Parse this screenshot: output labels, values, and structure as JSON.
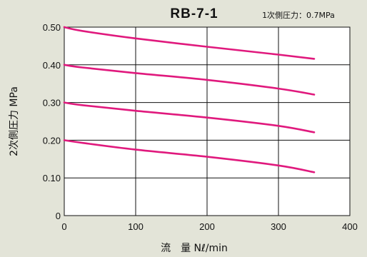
{
  "chart_data": {
    "type": "line",
    "title": "RB-7-1",
    "subtitle": "1次側圧力：0.7MPa",
    "xlabel": "流　量 Nℓ/min",
    "ylabel": "2次側圧力 MPa",
    "xlim": [
      0,
      400
    ],
    "ylim": [
      0,
      0.5
    ],
    "xticks": [
      "0",
      "100",
      "200",
      "300",
      "400"
    ],
    "yticks": [
      "0",
      "0.10",
      "0.20",
      "0.30",
      "0.40",
      "0.50"
    ],
    "grid": true,
    "colors": {
      "background": "#e3e4d8",
      "plot_background": "#ffffff",
      "line": "#e0197d",
      "grid": "#111111"
    },
    "series": [
      {
        "x": [
          0,
          25,
          100,
          200,
          300,
          350
        ],
        "y": [
          0.5,
          0.49,
          0.47,
          0.448,
          0.427,
          0.416
        ]
      },
      {
        "x": [
          0,
          25,
          100,
          200,
          300,
          350
        ],
        "y": [
          0.4,
          0.393,
          0.378,
          0.36,
          0.337,
          0.321
        ]
      },
      {
        "x": [
          0,
          25,
          100,
          200,
          300,
          350
        ],
        "y": [
          0.3,
          0.293,
          0.278,
          0.26,
          0.238,
          0.221
        ]
      },
      {
        "x": [
          0,
          25,
          100,
          200,
          300,
          350
        ],
        "y": [
          0.2,
          0.193,
          0.175,
          0.156,
          0.133,
          0.115
        ]
      }
    ]
  }
}
